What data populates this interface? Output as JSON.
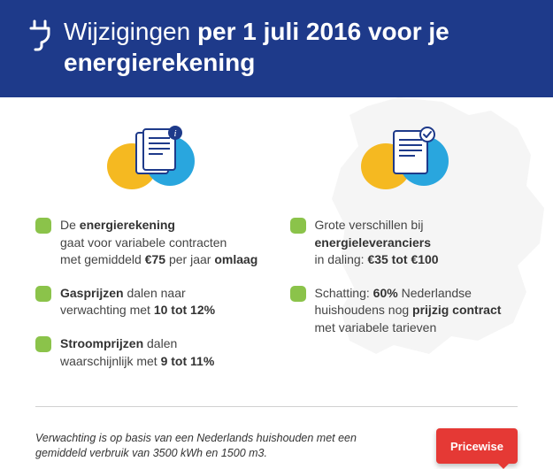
{
  "colors": {
    "header_bg": "#1e3a8a",
    "accent_yellow": "#f5b921",
    "accent_blue": "#29a6de",
    "bullet_green": "#8bc34a",
    "logo_red": "#e53935",
    "map_grey": "#e8e8e8",
    "text_body": "#444444",
    "divider": "#d0d0d0"
  },
  "header": {
    "title_html": "Wijzigingen <span class=\"bold\">per 1 juli 2016 voor je energierekening</span>"
  },
  "left_icon_badge": "i",
  "right_icon_badge": "✓",
  "left_bullets": [
    "De <b>energierekening</b><br>gaat voor variabele contracten<br>met gemiddeld <b>€75</b> per jaar <b>omlaag</b>",
    "<b>Gasprijzen</b> dalen naar<br>verwachting met <b>10 tot 12%</b>",
    "<b>Stroomprijzen</b> dalen<br>waarschijnlijk met <b>9 tot 11%</b>"
  ],
  "right_bullets": [
    "Grote verschillen bij<br><b>energieleveranciers</b><br>in daling: <b>€35 tot €100</b>",
    "Schatting: <b>60%</b> Nederlandse<br>huishoudens nog <b>prijzig contract</b><br>met variabele tarieven"
  ],
  "footnote": "Verwachting is op basis van een Nederlands huishouden met een gemiddeld verbruik van 3500 kWh en 1500 m3.",
  "logo": {
    "text": "Pricewise"
  }
}
